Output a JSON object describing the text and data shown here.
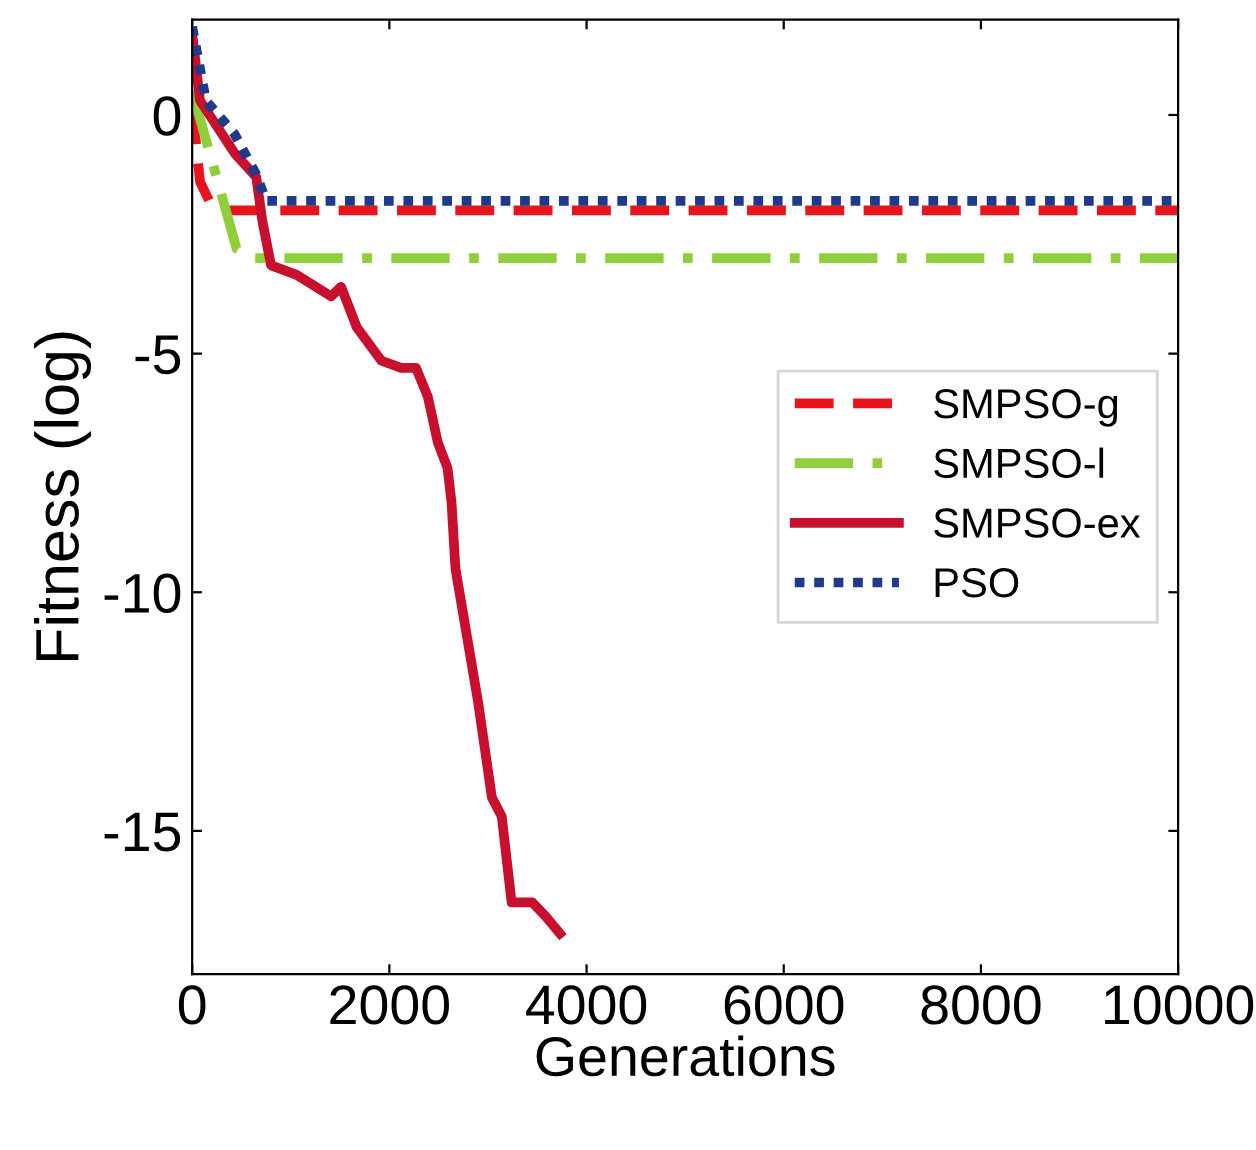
{
  "chart_data": {
    "type": "line",
    "xlabel": "Generations",
    "ylabel": "Fitness (log)",
    "xlim": [
      0,
      10000
    ],
    "ylim": [
      -18,
      2
    ],
    "xticks": [
      0,
      2000,
      4000,
      6000,
      8000,
      10000
    ],
    "yticks": [
      -15,
      -10,
      -5,
      0
    ],
    "grid": false,
    "legend": "right",
    "series": [
      {
        "name": "SMPSO-g",
        "color": "#e8131b",
        "line_style": "dashed",
        "x": [
          0,
          80,
          220,
          10000
        ],
        "values": [
          0.2,
          -1.4,
          -2.0,
          -2.0
        ]
      },
      {
        "name": "SMPSO-l",
        "color": "#8fcf3c",
        "line_style": "dashdot",
        "x": [
          0,
          220,
          450,
          630,
          10000
        ],
        "values": [
          0.5,
          -1.1,
          -2.8,
          -3.0,
          -3.0
        ]
      },
      {
        "name": "SMPSO-ex",
        "color": "#c8102e",
        "line_style": "solid",
        "x": [
          0,
          80,
          430,
          650,
          710,
          800,
          1060,
          1410,
          1510,
          1670,
          1920,
          2120,
          2270,
          2390,
          2490,
          2590,
          2630,
          2670,
          2900,
          3040,
          3140,
          3240,
          3450,
          3590,
          3730
        ],
        "values": [
          1.7,
          0.3,
          -0.8,
          -1.3,
          -2.2,
          -3.15,
          -3.35,
          -3.8,
          -3.6,
          -4.45,
          -5.15,
          -5.3,
          -5.3,
          -5.9,
          -6.85,
          -7.4,
          -8.1,
          -9.5,
          -12.3,
          -14.3,
          -14.7,
          -16.5,
          -16.5,
          -16.8,
          -17.15
        ]
      },
      {
        "name": "PSO",
        "color": "#1f3a8a",
        "line_style": "dotted",
        "x": [
          0,
          140,
          430,
          650,
          750,
          10000
        ],
        "values": [
          1.85,
          0.3,
          -0.4,
          -1.25,
          -1.8,
          -1.8
        ]
      }
    ]
  }
}
